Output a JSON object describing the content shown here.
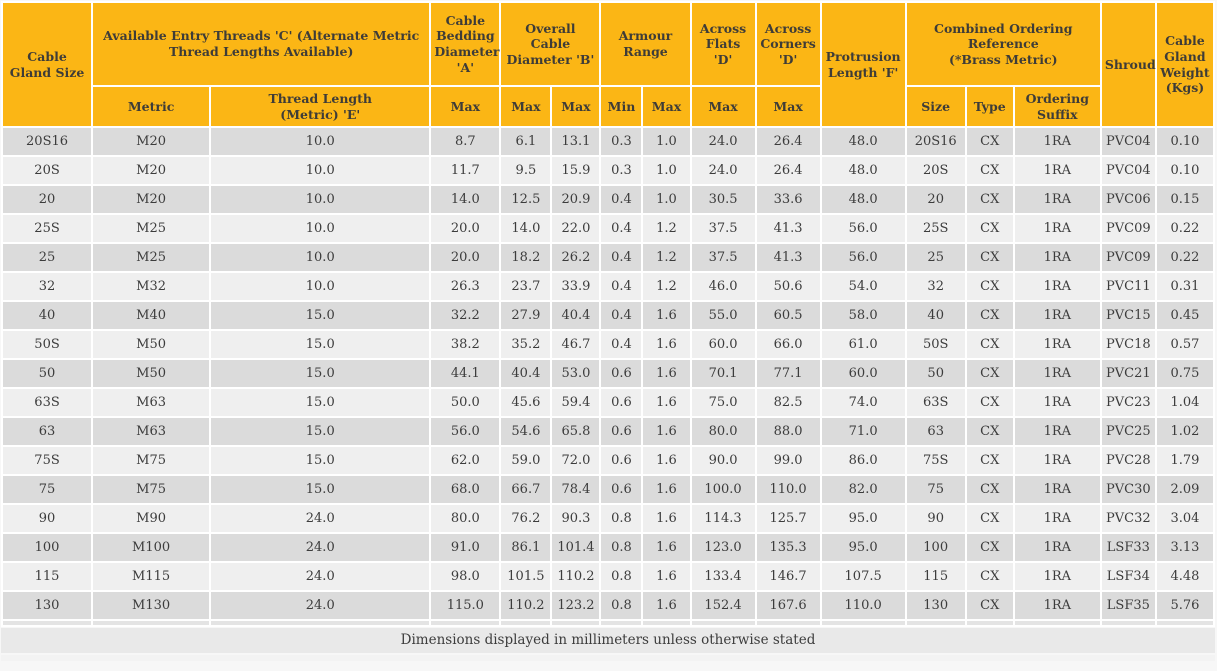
{
  "table": {
    "headers": {
      "cable_gland_size": "Cable Gland Size",
      "entry_threads_group": "Available Entry Threads 'C' (Alternate Metric Thread Lengths Available)",
      "metric": "Metric",
      "thread_length": "Thread Length\n(Metric) 'E'",
      "cable_bedding_group": "Cable Bedding Diameter 'A'",
      "bedding_max": "Max",
      "overall_cable_group": "Overall Cable Diameter 'B'",
      "overall_max_1": "Max",
      "overall_max_2": "Max",
      "armour_group": "Armour Range",
      "armour_min": "Min",
      "armour_max": "Max",
      "across_flats_group": "Across Flats 'D'",
      "flats_max": "Max",
      "across_corners_group": "Across Corners 'D'",
      "corners_max": "Max",
      "protrusion": "Protrusion Length 'F'",
      "combined_ordering_group": "Combined Ordering Reference\n(*Brass Metric)",
      "ordering_size": "Size",
      "ordering_type": "Type",
      "ordering_suffix": "Ordering Suffix",
      "shroud": "Shroud",
      "weight": "Cable Gland Weight (Kgs)"
    },
    "rows": [
      [
        "20S16",
        "M20",
        "10.0",
        "8.7",
        "6.1",
        "13.1",
        "0.3",
        "1.0",
        "24.0",
        "26.4",
        "48.0",
        "20S16",
        "CX",
        "1RA",
        "PVC04",
        "0.10"
      ],
      [
        "20S",
        "M20",
        "10.0",
        "11.7",
        "9.5",
        "15.9",
        "0.3",
        "1.0",
        "24.0",
        "26.4",
        "48.0",
        "20S",
        "CX",
        "1RA",
        "PVC04",
        "0.10"
      ],
      [
        "20",
        "M20",
        "10.0",
        "14.0",
        "12.5",
        "20.9",
        "0.4",
        "1.0",
        "30.5",
        "33.6",
        "48.0",
        "20",
        "CX",
        "1RA",
        "PVC06",
        "0.15"
      ],
      [
        "25S",
        "M25",
        "10.0",
        "20.0",
        "14.0",
        "22.0",
        "0.4",
        "1.2",
        "37.5",
        "41.3",
        "56.0",
        "25S",
        "CX",
        "1RA",
        "PVC09",
        "0.22"
      ],
      [
        "25",
        "M25",
        "10.0",
        "20.0",
        "18.2",
        "26.2",
        "0.4",
        "1.2",
        "37.5",
        "41.3",
        "56.0",
        "25",
        "CX",
        "1RA",
        "PVC09",
        "0.22"
      ],
      [
        "32",
        "M32",
        "10.0",
        "26.3",
        "23.7",
        "33.9",
        "0.4",
        "1.2",
        "46.0",
        "50.6",
        "54.0",
        "32",
        "CX",
        "1RA",
        "PVC11",
        "0.31"
      ],
      [
        "40",
        "M40",
        "15.0",
        "32.2",
        "27.9",
        "40.4",
        "0.4",
        "1.6",
        "55.0",
        "60.5",
        "58.0",
        "40",
        "CX",
        "1RA",
        "PVC15",
        "0.45"
      ],
      [
        "50S",
        "M50",
        "15.0",
        "38.2",
        "35.2",
        "46.7",
        "0.4",
        "1.6",
        "60.0",
        "66.0",
        "61.0",
        "50S",
        "CX",
        "1RA",
        "PVC18",
        "0.57"
      ],
      [
        "50",
        "M50",
        "15.0",
        "44.1",
        "40.4",
        "53.0",
        "0.6",
        "1.6",
        "70.1",
        "77.1",
        "60.0",
        "50",
        "CX",
        "1RA",
        "PVC21",
        "0.75"
      ],
      [
        "63S",
        "M63",
        "15.0",
        "50.0",
        "45.6",
        "59.4",
        "0.6",
        "1.6",
        "75.0",
        "82.5",
        "74.0",
        "63S",
        "CX",
        "1RA",
        "PVC23",
        "1.04"
      ],
      [
        "63",
        "M63",
        "15.0",
        "56.0",
        "54.6",
        "65.8",
        "0.6",
        "1.6",
        "80.0",
        "88.0",
        "71.0",
        "63",
        "CX",
        "1RA",
        "PVC25",
        "1.02"
      ],
      [
        "75S",
        "M75",
        "15.0",
        "62.0",
        "59.0",
        "72.0",
        "0.6",
        "1.6",
        "90.0",
        "99.0",
        "86.0",
        "75S",
        "CX",
        "1RA",
        "PVC28",
        "1.79"
      ],
      [
        "75",
        "M75",
        "15.0",
        "68.0",
        "66.7",
        "78.4",
        "0.6",
        "1.6",
        "100.0",
        "110.0",
        "82.0",
        "75",
        "CX",
        "1RA",
        "PVC30",
        "2.09"
      ],
      [
        "90",
        "M90",
        "24.0",
        "80.0",
        "76.2",
        "90.3",
        "0.8",
        "1.6",
        "114.3",
        "125.7",
        "95.0",
        "90",
        "CX",
        "1RA",
        "PVC32",
        "3.04"
      ],
      [
        "100",
        "M100",
        "24.0",
        "91.0",
        "86.1",
        "101.4",
        "0.8",
        "1.6",
        "123.0",
        "135.3",
        "95.0",
        "100",
        "CX",
        "1RA",
        "LSF33",
        "3.13"
      ],
      [
        "115",
        "M115",
        "24.0",
        "98.0",
        "101.5",
        "110.2",
        "0.8",
        "1.6",
        "133.4",
        "146.7",
        "107.5",
        "115",
        "CX",
        "1RA",
        "LSF34",
        "4.48"
      ],
      [
        "130",
        "M130",
        "24.0",
        "115.0",
        "110.2",
        "123.2",
        "0.8",
        "1.6",
        "152.4",
        "167.6",
        "110.0",
        "130",
        "CX",
        "1RA",
        "LSF35",
        "5.76"
      ]
    ],
    "footer_note": "Dimensions displayed in millimeters unless otherwise stated"
  },
  "colors": {
    "header_bg": "#FBB615",
    "row_odd_bg": "#DBDBDB",
    "row_even_bg": "#EFEFEF",
    "footer_bg": "#E9E9E9",
    "text": "#3C3C3C"
  }
}
